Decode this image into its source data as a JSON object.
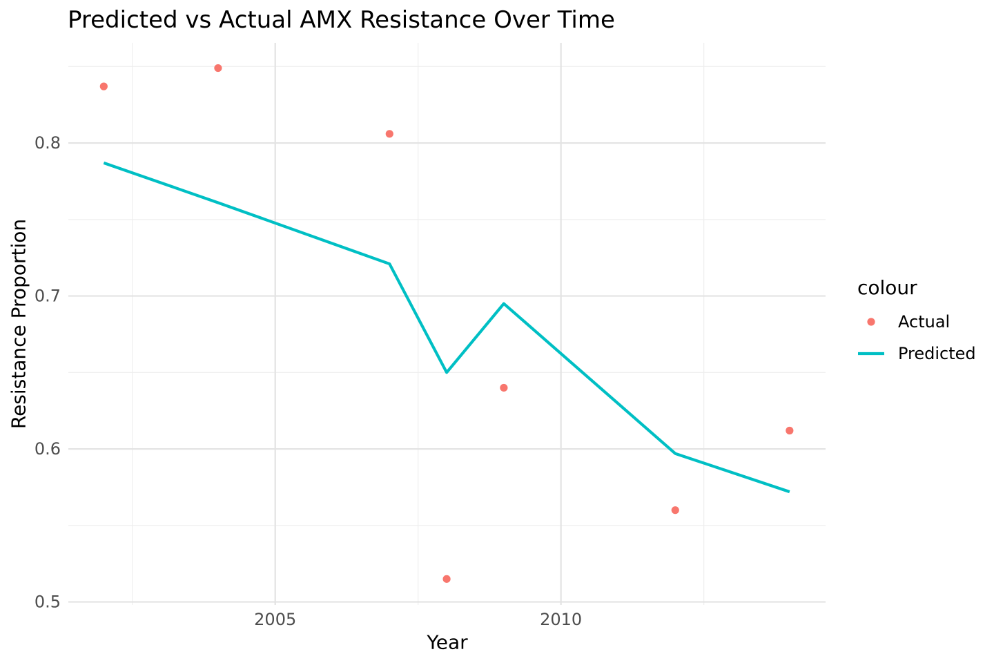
{
  "chart_data": {
    "type": "line",
    "title": "Predicted vs Actual AMX Resistance Over Time",
    "xlabel": "Year",
    "ylabel": "Resistance Proportion",
    "xlim": [
      2001.38,
      2014.63
    ],
    "ylim": [
      0.498,
      0.8655
    ],
    "grid": "major-and-minor",
    "x_ticks": {
      "major": [
        {
          "value": 2005,
          "label": "2005"
        },
        {
          "value": 2010,
          "label": "2010"
        }
      ],
      "minor": [
        2002.5,
        2007.5,
        2012.5
      ]
    },
    "y_ticks": {
      "major": [
        {
          "value": 0.5,
          "label": "0.5"
        },
        {
          "value": 0.6,
          "label": "0.6"
        },
        {
          "value": 0.7,
          "label": "0.7"
        },
        {
          "value": 0.8,
          "label": "0.8"
        }
      ],
      "minor": [
        0.55,
        0.65,
        0.75,
        0.85
      ]
    },
    "legend": {
      "title": "colour",
      "position": "right",
      "entries": [
        {
          "label": "Actual",
          "marker": "point",
          "color": "#F8766D"
        },
        {
          "label": "Predicted",
          "marker": "line",
          "color": "#00BFC4"
        }
      ]
    },
    "series": [
      {
        "name": "Actual",
        "geom": "point",
        "color": "#F8766D",
        "x": [
          2002,
          2004,
          2007,
          2008,
          2009,
          2012,
          2014
        ],
        "y": [
          0.837,
          0.849,
          0.806,
          0.515,
          0.64,
          0.56,
          0.612
        ]
      },
      {
        "name": "Predicted",
        "geom": "line",
        "color": "#00BFC4",
        "x": [
          2002,
          2004,
          2007,
          2008,
          2009,
          2012,
          2014
        ],
        "y": [
          0.787,
          0.761,
          0.721,
          0.65,
          0.695,
          0.597,
          0.572
        ]
      }
    ],
    "colors": {
      "background": "#FFFFFF",
      "grid_major": "#E3E3E3",
      "grid_minor": "#EEEEEE",
      "tick_text": "#4D4D4D",
      "text": "#000000"
    }
  }
}
